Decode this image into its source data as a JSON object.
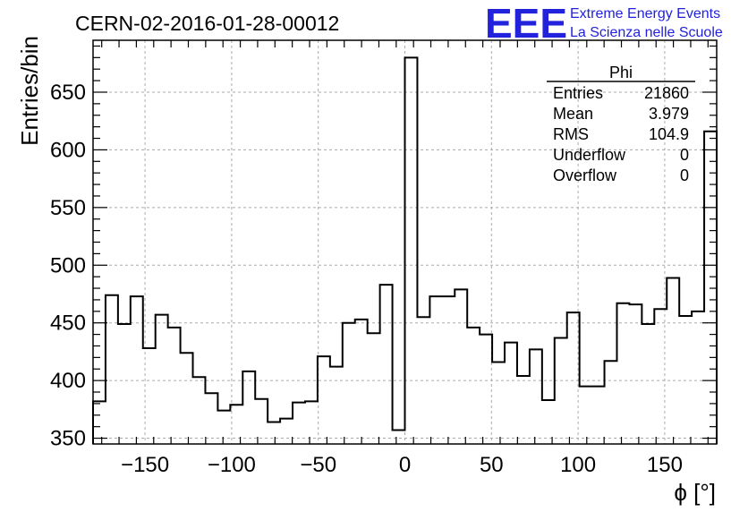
{
  "title": "CERN-02-2016-01-28-00012",
  "logo": {
    "mark": "EEE",
    "line1": "Extreme Energy Events",
    "line2": "La Scienza nelle Scuole"
  },
  "stats": {
    "name": "Phi",
    "rows": [
      {
        "label": "Entries",
        "value": "21860"
      },
      {
        "label": "Mean",
        "value": "3.979"
      },
      {
        "label": "RMS",
        "value": "104.9"
      },
      {
        "label": "Underflow",
        "value": "0"
      },
      {
        "label": "Overflow",
        "value": "0"
      }
    ]
  },
  "chart_data": {
    "type": "histogram",
    "title": "CERN-02-2016-01-28-00012",
    "xlabel": "ϕ [°]",
    "ylabel": "Entries/bin",
    "xlim": [
      -180,
      180
    ],
    "ylim": [
      345,
      695
    ],
    "grid": true,
    "bin_width": 7.2,
    "values": [
      382,
      474,
      449,
      473,
      428,
      457,
      446,
      424,
      403,
      389,
      374,
      379,
      408,
      384,
      364,
      367,
      381,
      382,
      421,
      412,
      450,
      453,
      441,
      483,
      357,
      680,
      455,
      473,
      473,
      479,
      446,
      440,
      416,
      433,
      404,
      427,
      383,
      437,
      459,
      395,
      395,
      417,
      467,
      466,
      449,
      462,
      489,
      456,
      460,
      616
    ],
    "x_ticks": [
      -150,
      -100,
      -50,
      0,
      50,
      100,
      150
    ],
    "x_tick_labels": [
      "−150",
      "−100",
      "−50",
      "0",
      "50",
      "100",
      "150"
    ],
    "y_ticks": [
      350,
      400,
      450,
      500,
      550,
      600,
      650
    ],
    "y_tick_labels": [
      "350",
      "400",
      "450",
      "500",
      "550",
      "600",
      "650"
    ]
  }
}
